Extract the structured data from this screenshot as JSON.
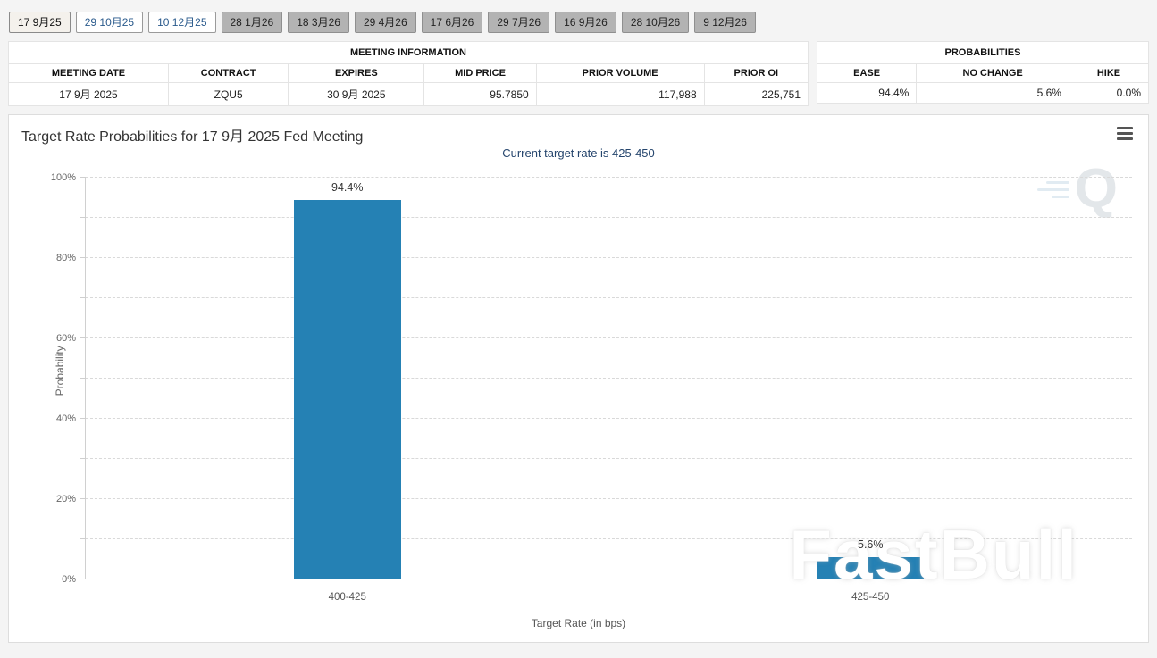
{
  "tabs": [
    {
      "label": "17 9月25",
      "state": "selected"
    },
    {
      "label": "29 10月25",
      "state": "normal"
    },
    {
      "label": "10 12月25",
      "state": "normal"
    },
    {
      "label": "28 1月26",
      "state": "gray"
    },
    {
      "label": "18 3月26",
      "state": "gray"
    },
    {
      "label": "29 4月26",
      "state": "gray"
    },
    {
      "label": "17 6月26",
      "state": "gray"
    },
    {
      "label": "29 7月26",
      "state": "gray"
    },
    {
      "label": "16 9月26",
      "state": "gray"
    },
    {
      "label": "28 10月26",
      "state": "gray"
    },
    {
      "label": "9 12月26",
      "state": "gray"
    }
  ],
  "meeting_info": {
    "title": "MEETING INFORMATION",
    "headers": [
      "MEETING DATE",
      "CONTRACT",
      "EXPIRES",
      "MID PRICE",
      "PRIOR VOLUME",
      "PRIOR OI"
    ],
    "row": [
      "17 9月 2025",
      "ZQU5",
      "30 9月 2025",
      "95.7850",
      "117,988",
      "225,751"
    ]
  },
  "probabilities": {
    "title": "PROBABILITIES",
    "headers": [
      "EASE",
      "NO CHANGE",
      "HIKE"
    ],
    "row": [
      "94.4%",
      "5.6%",
      "0.0%"
    ]
  },
  "chart_data": {
    "type": "bar",
    "title": "Target Rate Probabilities for 17 9月 2025 Fed Meeting",
    "subtitle": "Current target rate is 425-450",
    "categories": [
      "400-425",
      "425-450"
    ],
    "values": [
      94.4,
      5.6
    ],
    "data_labels": [
      "94.4%",
      "5.6%"
    ],
    "xlabel": "Target Rate (in bps)",
    "ylabel": "Probability",
    "ylim": [
      0,
      100
    ],
    "grid_step": 10,
    "ytick_step": 20,
    "ytick_labels": [
      "0%",
      "20%",
      "40%",
      "60%",
      "80%",
      "100%"
    ],
    "bar_color": "#2581b4",
    "legend": "off",
    "grid": "dashed"
  },
  "watermark": {
    "text": "FastBull",
    "logo_letter": "Q"
  }
}
